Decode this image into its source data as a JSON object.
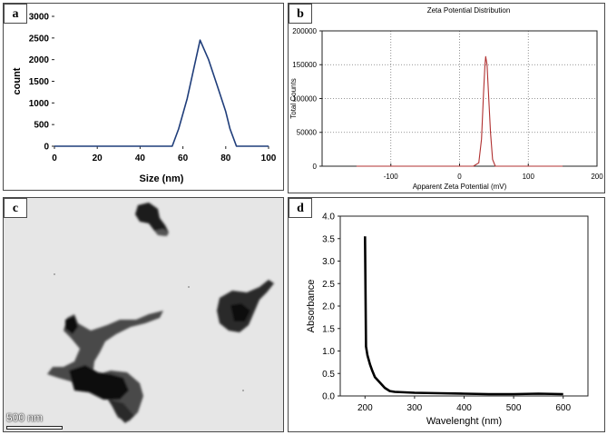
{
  "panels": {
    "a": {
      "tag": "a"
    },
    "b": {
      "tag": "b"
    },
    "c": {
      "tag": "c",
      "scale_label": "500 nm"
    },
    "d": {
      "tag": "d"
    }
  },
  "colors": {
    "a_line": "#1f3d7a",
    "b_line": "#b03030",
    "d_line": "#000000"
  },
  "chart_data": [
    {
      "id": "a",
      "type": "line",
      "title": "",
      "xlabel": "Size (nm)",
      "ylabel": "count",
      "xlim": [
        0,
        100
      ],
      "ylim": [
        0,
        3000
      ],
      "xticks": [
        0,
        20,
        40,
        60,
        80,
        100
      ],
      "yticks": [
        0,
        500,
        1000,
        1500,
        2000,
        2500,
        3000
      ],
      "xtick_labels": [
        "0",
        "20",
        "40",
        "60",
        "80",
        "100"
      ],
      "ytick_labels": [
        "0",
        "500",
        "1000",
        "1500",
        "2000",
        "2500",
        "3000"
      ],
      "grid": false,
      "series": [
        {
          "x": [
            0,
            55,
            58,
            62,
            68,
            72,
            76,
            80,
            82,
            85,
            100
          ],
          "y": [
            0,
            0,
            400,
            1100,
            2450,
            2000,
            1400,
            800,
            400,
            0,
            0
          ]
        }
      ]
    },
    {
      "id": "b",
      "type": "line",
      "title": "Zeta Potential Distribution",
      "xlabel": "Apparent Zeta Potential (mV)",
      "ylabel": "Total Counts",
      "xlim": [
        -200,
        200
      ],
      "ylim": [
        0,
        200000
      ],
      "xticks": [
        -100,
        0,
        100,
        200
      ],
      "yticks": [
        0,
        50000,
        100000,
        150000,
        200000
      ],
      "xtick_labels": [
        "-100",
        "0",
        "100",
        "200"
      ],
      "ytick_labels": [
        "0",
        "50000",
        "100000",
        "150000",
        "200000"
      ],
      "grid": true,
      "series": [
        {
          "x": [
            -150,
            20,
            28,
            32,
            35,
            37,
            38,
            40,
            42,
            45,
            48,
            52,
            60,
            150
          ],
          "y": [
            0,
            0,
            5000,
            40000,
            110000,
            150000,
            162000,
            150000,
            110000,
            50000,
            10000,
            0,
            0,
            0
          ]
        }
      ]
    },
    {
      "id": "d",
      "type": "line",
      "title": "",
      "xlabel": "Wavelenght (nm)",
      "ylabel": "Absorbance",
      "xlim": [
        150,
        650
      ],
      "ylim": [
        0,
        4.0
      ],
      "xticks": [
        200,
        300,
        400,
        500,
        600
      ],
      "yticks": [
        0.0,
        0.5,
        1.0,
        1.5,
        2.0,
        2.5,
        3.0,
        3.5,
        4.0
      ],
      "xtick_labels": [
        "200",
        "300",
        "400",
        "500",
        "600"
      ],
      "ytick_labels": [
        "0.0",
        "0.5",
        "1.0",
        "1.5",
        "2.0",
        "2.5",
        "3.0",
        "3.5",
        "4.0"
      ],
      "grid": false,
      "series": [
        {
          "x": [
            200,
            202,
            205,
            210,
            215,
            220,
            230,
            240,
            250,
            260,
            280,
            300,
            350,
            400,
            450,
            500,
            550,
            600
          ],
          "y": [
            3.55,
            1.1,
            0.9,
            0.7,
            0.55,
            0.42,
            0.3,
            0.18,
            0.11,
            0.09,
            0.08,
            0.07,
            0.06,
            0.05,
            0.04,
            0.04,
            0.05,
            0.04
          ]
        }
      ]
    }
  ]
}
